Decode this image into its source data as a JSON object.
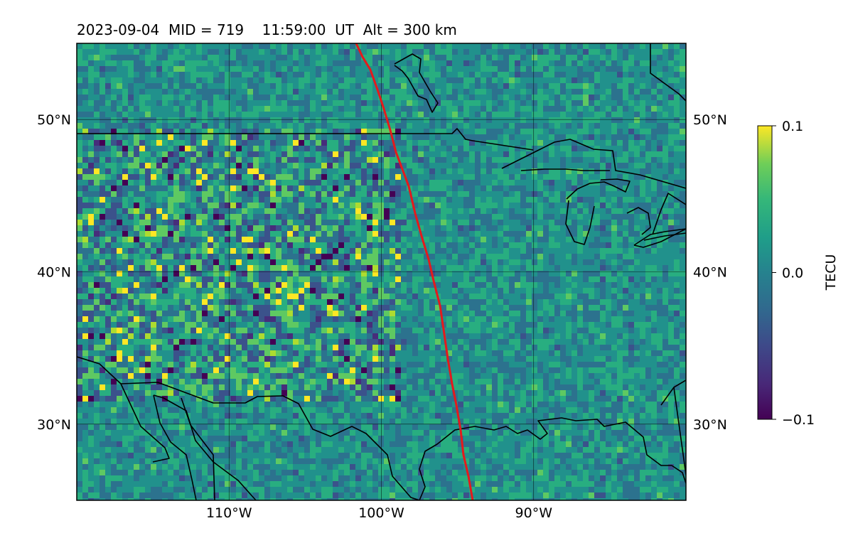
{
  "title": {
    "date": "2023-09-04",
    "mid": "MID = 719",
    "time": "11:59:00  UT",
    "alt": "Alt = 300 km"
  },
  "map": {
    "lon_range": [
      -120,
      -80
    ],
    "lat_range": [
      25,
      55
    ],
    "lon_ticks": [
      {
        "value": -110,
        "label": "110°W"
      },
      {
        "value": -100,
        "label": "100°W"
      },
      {
        "value": -90,
        "label": "90°W"
      }
    ],
    "lat_ticks": [
      {
        "value": 50,
        "label": "50°N"
      },
      {
        "value": 40,
        "label": "40°N"
      },
      {
        "value": 30,
        "label": "30°N"
      }
    ],
    "terminator_color": "#e41a1c",
    "coastline_color": "#000000",
    "colormap": "viridis"
  },
  "colorbar": {
    "label": "TECU",
    "min": -0.1,
    "max": 0.1,
    "ticks": [
      {
        "value": 0.1,
        "label": "0.1"
      },
      {
        "value": 0.0,
        "label": "0.0"
      },
      {
        "value": -0.1,
        "label": "−0.1"
      }
    ]
  }
}
